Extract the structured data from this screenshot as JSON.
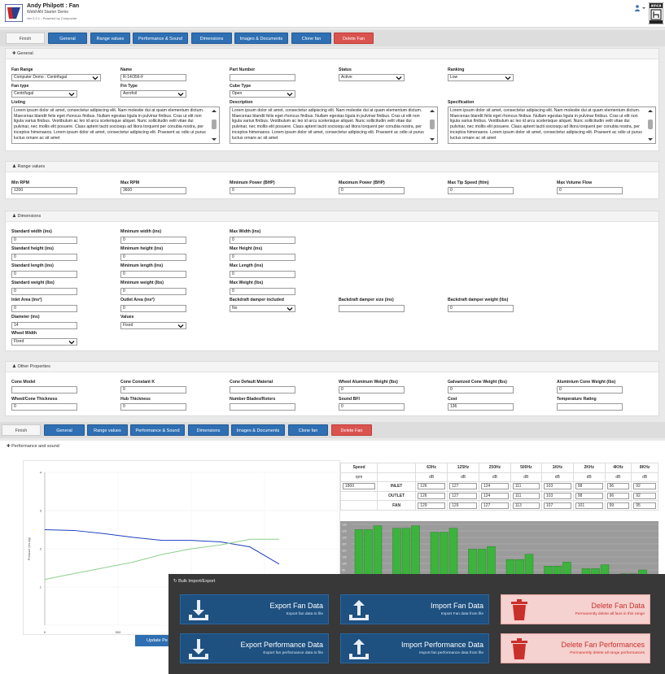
{
  "header": {
    "title": "Andy Philpott : Fan",
    "subtitle": "WebFAN Starter Demo",
    "version": "Ver 0.2.1 - Powered by Compuzlar",
    "user_icon": "user-icon",
    "brand_logo": "amca-logo"
  },
  "tabs": [
    {
      "label": "Finish"
    },
    {
      "label": "General"
    },
    {
      "label": "Range values"
    },
    {
      "label": "Performance & Sound"
    },
    {
      "label": "Dimensions"
    },
    {
      "label": "Images & Documents"
    },
    {
      "label": "Clone fan"
    },
    {
      "label": "Delete Fan"
    }
  ],
  "general": {
    "title": "General",
    "fan_range": {
      "label": "Fan Range",
      "value": "Computer Demo : Centrifugal"
    },
    "name": {
      "label": "Name",
      "value": "R-14/356-F"
    },
    "part_number": {
      "label": "Part Number",
      "value": ""
    },
    "status": {
      "label": "Status",
      "value": "Active"
    },
    "ranking": {
      "label": "Ranking",
      "value": "Low"
    },
    "fan_type": {
      "label": "Fan type",
      "value": "Centrifugal"
    },
    "fin_type": {
      "label": "Fin Type",
      "value": "Aerofoil"
    },
    "cube_type": {
      "label": "Cube Type",
      "value": "Open"
    },
    "listing": {
      "label": "Listing",
      "value": "Lorem ipsum dolor sit amet, consectetur adipiscing elit. Nam molestie dui at quam elementum dictum. Maecenas blandit felis eget rhoncus finibus. Nullam egestas ligula in pulvinar finibus. Cras ut elit non ligula varius finibus. Vestibulum ac leo id arcu scelerisque aliquet. Nunc sollicitudin velit vitae dui pulvinar, nec mollis elit posuere. Class aptent taciti sociosqu ad litora torquent per conubia nostra, per inceptos himenaeos. Lorem ipsum dolor sit amet, consectetur adipiscing elit. Praesent ac odio ut purus luctus ornare ac sit amet"
    },
    "description": {
      "label": "Description",
      "value": "Lorem ipsum dolor sit amet, consectetur adipiscing elit. Nam molestie dui at quam elementum dictum. Maecenas blandit felis eget rhoncus finibus. Nullam egestas ligula in pulvinar finibus. Cras ut elit non ligula varius finibus. Vestibulum ac leo id arcu scelerisque aliquet. Nunc sollicitudin velit vitae dui pulvinar, nec mollis elit posuere. Class aptent taciti sociosqu ad litora torquent per conubia nostra, per inceptos himenaeos. Lorem ipsum dolor sit amet, consectetur adipiscing elit. Praesent ac odio ut purus luctus ornare ac sit amet"
    },
    "specification": {
      "label": "Specification",
      "value": "Lorem ipsum dolor sit amet, consectetur adipiscing elit. Nam molestie dui at quam elementum dictum. Maecenas blandit felis eget rhoncus finibus. Nullam egestas ligula in pulvinar finibus. Cras ut elit non ligula varius finibus. Vestibulum ac leo id arcu scelerisque aliquet. Nunc sollicitudin velit vitae dui pulvinar, nec mollis elit posuere. Class aptent taciti sociosqu ad litora torquent per conubia nostra, per inceptos himenaeos. Lorem ipsum dolor sit amet, consectetur adipiscing elit. Praesent ac odio ut purus luctus ornare ac sit amet"
    }
  },
  "range_values": {
    "title": "Range values",
    "fields": [
      {
        "label": "Min RPM",
        "value": "1200"
      },
      {
        "label": "Max RPM",
        "value": "3600"
      },
      {
        "label": "Minimum Power (BHP)",
        "value": "0"
      },
      {
        "label": "Maximum Power (BHP)",
        "value": "0"
      },
      {
        "label": "Max Tip Speed (ft/m)",
        "value": "0"
      },
      {
        "label": "Max Volume Flow",
        "value": "0"
      }
    ]
  },
  "dimensions": {
    "title": "Dimensions",
    "fields": [
      {
        "label": "Standard width (ins)",
        "value": "0"
      },
      {
        "label": "Minimum width (ins)",
        "value": "0"
      },
      {
        "label": "Max Width (ins)",
        "value": "0"
      },
      {
        "label": "Standard height (ins)",
        "value": "0"
      },
      {
        "label": "Minimum height (ins)",
        "value": "0"
      },
      {
        "label": "Max Height (ins)",
        "value": "0"
      },
      {
        "label": "Standard length (ins)",
        "value": "0"
      },
      {
        "label": "Minimum length (ins)",
        "value": "0"
      },
      {
        "label": "Max Length (ins)",
        "value": "0"
      },
      {
        "label": "Standard weight (lbs)",
        "value": "0"
      },
      {
        "label": "Minimum weight (lbs)",
        "value": "0"
      },
      {
        "label": "Max Weight (lbs)",
        "value": "0"
      },
      {
        "label": "Inlet Area (ins²)",
        "value": "0"
      },
      {
        "label": "Outlet Area (ins²)",
        "value": "0"
      },
      {
        "label": "Backdraft damper included",
        "value": "No"
      },
      {
        "label": "Backdraft damper size (ins)",
        "value": ""
      },
      {
        "label": "Backdraft damper weight (lbs)",
        "value": "0"
      },
      {
        "label": "Diameter (ins)",
        "value": "14"
      },
      {
        "label": "Values",
        "value": "Fixed"
      },
      {
        "label": "Wheel Width",
        "value": "Fixed"
      }
    ]
  },
  "other": {
    "title": "Other Properties",
    "fields": [
      {
        "label": "Cone Model",
        "value": ""
      },
      {
        "label": "Cone Constant K",
        "value": "0"
      },
      {
        "label": "Cone Default Material",
        "value": ""
      },
      {
        "label": "Wheel Aluminum Weight (lbs)",
        "value": "0"
      },
      {
        "label": "Galvanized Cone Weight (lbs)",
        "value": "0"
      },
      {
        "label": "Aluminium Cone Weight (lbs)",
        "value": "0"
      },
      {
        "label": "Wheel/Cone Thickness",
        "value": "0"
      },
      {
        "label": "Hub Thickness",
        "value": "0"
      },
      {
        "label": "Number Blades/Rotors",
        "value": ""
      },
      {
        "label": "Sound BFI",
        "value": "0"
      },
      {
        "label": "Cost",
        "value": "136"
      },
      {
        "label": "Temperature Rating",
        "value": ""
      }
    ]
  },
  "perf": {
    "title": "Performance and sound",
    "update_label": "Update Pe",
    "table": {
      "headers": [
        "Speed",
        "",
        "63Hz",
        "125Hz",
        "250Hz",
        "500Hz",
        "1KHz",
        "2KHz",
        "4KHz",
        "8KHz"
      ],
      "units": [
        "rpm",
        "",
        "dB",
        "dB",
        "dB",
        "dB",
        "dB",
        "dB",
        "dB",
        "dB"
      ],
      "rows": [
        {
          "speed": "1800",
          "label": "INLET",
          "values": [
            "126",
            "127",
            "124",
            "111",
            "103",
            "98",
            "96",
            "92"
          ]
        },
        {
          "speed": "",
          "label": "OUTLET",
          "values": [
            "126",
            "127",
            "124",
            "111",
            "103",
            "98",
            "96",
            "92"
          ]
        },
        {
          "speed": "",
          "label": "FAN",
          "values": [
            "129",
            "129",
            "127",
            "113",
            "107",
            "101",
            "99",
            "95"
          ]
        }
      ]
    }
  },
  "chart_data": [
    {
      "type": "line",
      "xlim": [
        0,
        1000
      ],
      "ylim": [
        0,
        4
      ],
      "x_ticks": [
        "0",
        "500",
        "100"
      ],
      "y_ticks": [
        "4",
        "3",
        "2",
        "1"
      ],
      "ylabel": "Pressure (ins wg)",
      "series": [
        {
          "color": "#1f3fbf",
          "x": [
            0,
            100,
            200,
            300,
            400,
            500,
            600,
            700,
            800
          ],
          "y": [
            2.5,
            2.48,
            2.4,
            2.3,
            2.22,
            2.22,
            2.18,
            2.05,
            1.6
          ]
        },
        {
          "color": "#8fcf8f",
          "x": [
            0,
            100,
            200,
            300,
            400,
            500,
            600,
            700,
            800
          ],
          "y": [
            1.2,
            1.35,
            1.5,
            1.65,
            1.85,
            2.0,
            2.1,
            2.25,
            2.25
          ]
        }
      ]
    },
    {
      "type": "bar",
      "y_ticks": [
        "130",
        "125",
        "120",
        "115",
        "110",
        "105",
        "100",
        "95",
        "90"
      ],
      "ylim": [
        90,
        130
      ],
      "categories": [
        "63Hz",
        "125Hz",
        "250Hz",
        "500Hz",
        "1KHz",
        "2KHz",
        "4KHz",
        "8KHz"
      ],
      "series": [
        {
          "name": "INLET",
          "values": [
            126,
            127,
            124,
            111,
            103,
            98,
            96,
            92
          ]
        },
        {
          "name": "OUTLET",
          "values": [
            126,
            127,
            124,
            111,
            103,
            98,
            96,
            92
          ]
        },
        {
          "name": "FAN",
          "values": [
            129,
            129,
            127,
            113,
            107,
            101,
            99,
            95
          ]
        }
      ],
      "bar_color": "#3cb33c"
    }
  ],
  "bulk": {
    "title": "Bulk Import/Export",
    "cards": [
      {
        "title": "Export Fan Data",
        "sub": "Export fan data to file",
        "icon": "download-icon"
      },
      {
        "title": "Import Fan Data",
        "sub": "Import Fan data from file",
        "icon": "upload-icon"
      },
      {
        "title": "Delete Fan Data",
        "sub": "Permanently delete all fans in this range",
        "icon": "trash-icon"
      },
      {
        "title": "Export Performance Data",
        "sub": "Export fan performance data to file",
        "icon": "download-icon"
      },
      {
        "title": "Import Performance Data",
        "sub": "Import fan performance data from file",
        "icon": "upload-icon"
      },
      {
        "title": "Delete Fan Performances",
        "sub": "Permanently delete all range performances",
        "icon": "trash-icon"
      }
    ]
  }
}
